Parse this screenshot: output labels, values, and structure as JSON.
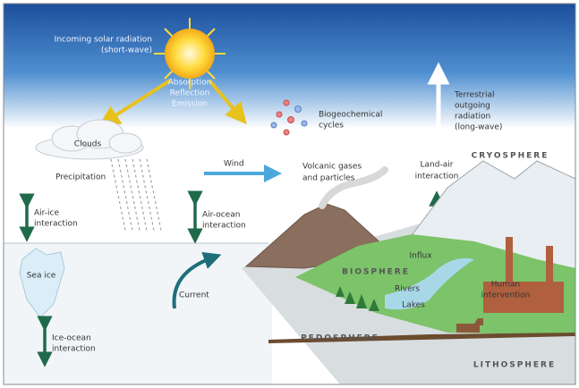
{
  "solar": {
    "lines": [
      "Incoming solar radiation",
      "(short-wave)"
    ]
  },
  "sun_effects": [
    "Absorption",
    "Reflection",
    "Emission"
  ],
  "biogeochemical": {
    "lines": [
      "Biogeochemical",
      "cycles"
    ]
  },
  "terrestrial": {
    "lines": [
      "Terrestrial",
      "outgoing",
      "radiation",
      "(long-wave)"
    ]
  },
  "clouds": "Clouds",
  "precipitation": "Precipitation",
  "wind": "Wind",
  "volcanic": {
    "lines": [
      "Volcanic gases",
      "and particles"
    ]
  },
  "land_air": {
    "lines": [
      "Land-air",
      "interaction"
    ]
  },
  "cryosphere": "CRYOSPHERE",
  "air_ice": {
    "lines": [
      "Air-ice",
      "interaction"
    ]
  },
  "air_ocean": {
    "lines": [
      "Air-ocean",
      "interaction"
    ]
  },
  "sea_ice": "Sea ice",
  "influx": "Influx",
  "biosphere": "BIOSPHERE",
  "human": {
    "lines": [
      "Human",
      "intervention"
    ]
  },
  "rivers": "Rivers",
  "lakes": "Lakes",
  "current": "Current",
  "pedosphere": "PEDOSPHERE",
  "ice_ocean": {
    "lines": [
      "Ice-ocean",
      "interaction"
    ]
  },
  "lithosphere": "LITHOSPHERE"
}
